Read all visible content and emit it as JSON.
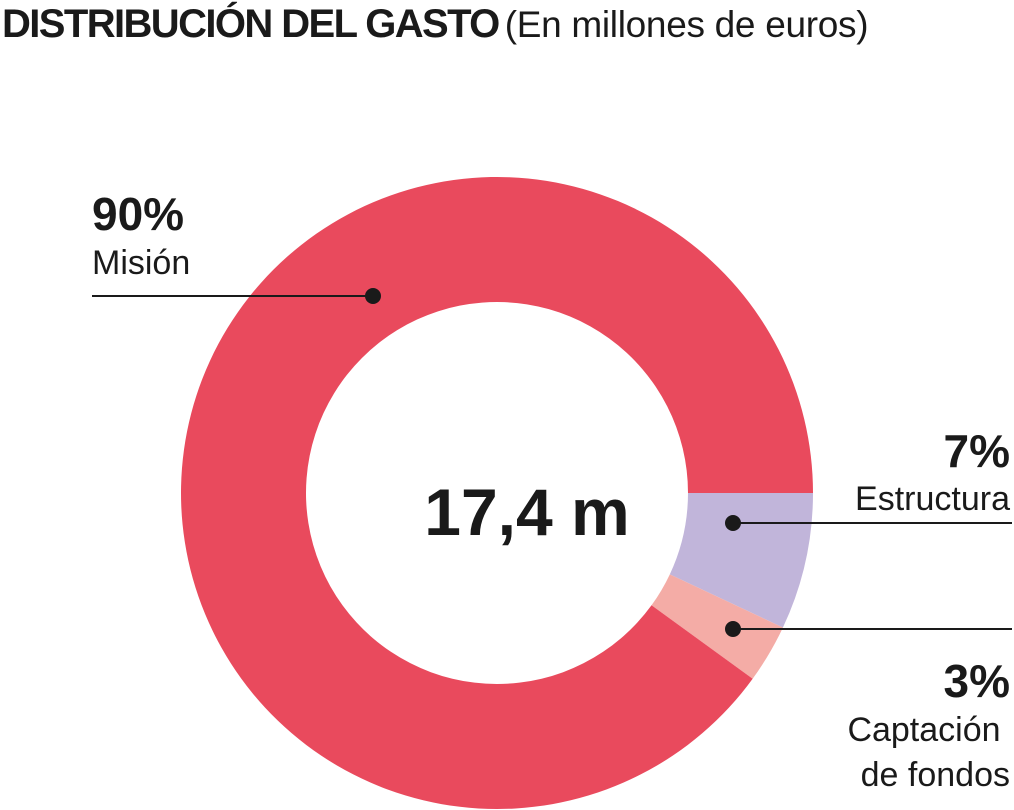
{
  "title": "DISTRIBUCIÓN DEL GASTO",
  "subtitle": "(En millones de euros)",
  "chart_data": {
    "type": "pie",
    "variant": "donut",
    "center_label": "17,4 m",
    "total": 17.4,
    "unit": "millones de euros",
    "slices": [
      {
        "name": "Estructura",
        "percent_label": "7%",
        "value": 7,
        "color": "#c1b5da"
      },
      {
        "name": "Captación de fondos",
        "percent_label": "3%",
        "value": 3,
        "color": "#f4aca6"
      },
      {
        "name": "Misión",
        "percent_label": "90%",
        "value": 90,
        "color": "#e94a5d"
      }
    ],
    "legend": "callout-labels"
  }
}
